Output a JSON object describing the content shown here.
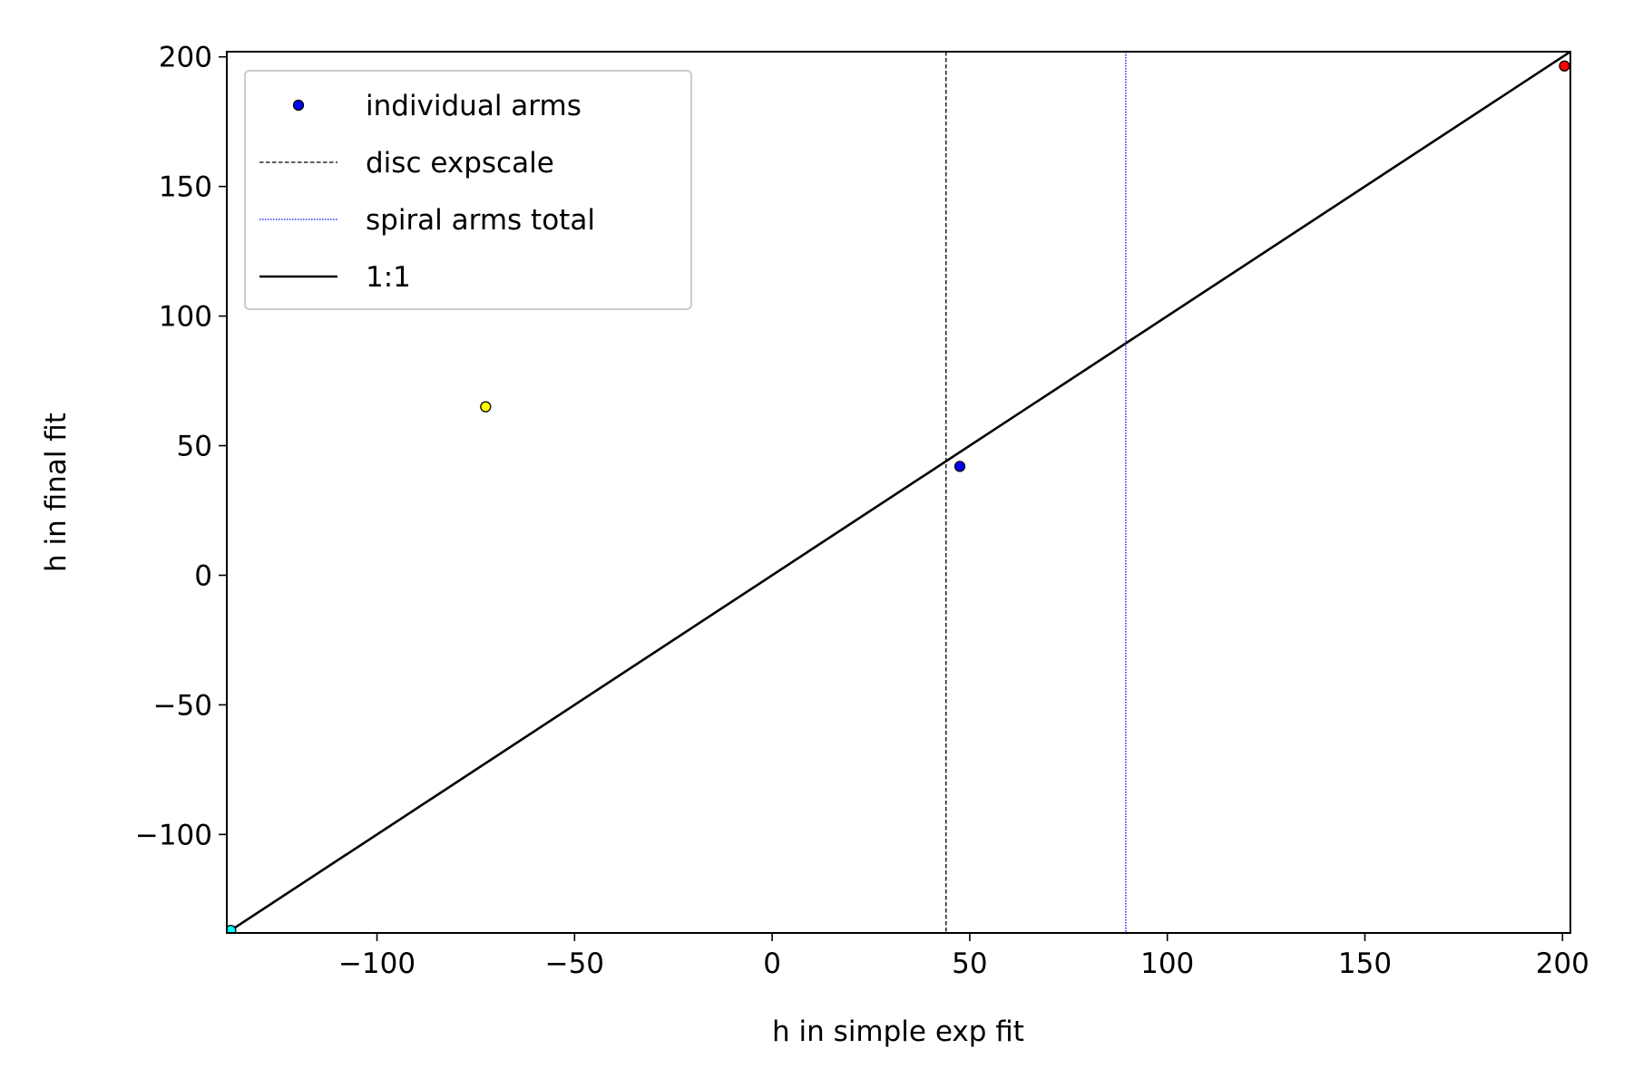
{
  "chart_data": {
    "type": "scatter",
    "xlabel": "h in simple exp fit",
    "ylabel": "h in final fit",
    "xlim": [
      -138,
      202
    ],
    "ylim": [
      -138,
      202
    ],
    "xticks": [
      -100,
      -50,
      0,
      50,
      100,
      150,
      200
    ],
    "yticks": [
      -100,
      -50,
      0,
      50,
      100,
      150,
      200
    ],
    "xtick_labels": [
      "−100",
      "−50",
      "0",
      "50",
      "100",
      "150",
      "200"
    ],
    "ytick_labels": [
      "−100",
      "−50",
      "0",
      "50",
      "100",
      "150",
      "200"
    ],
    "grid": false,
    "legend_position": "top-left",
    "series": [
      {
        "name": "individual arms",
        "kind": "scatter",
        "color": "#0000ff",
        "points": [
          {
            "x": 47.5,
            "y": 42.0,
            "color": "#0000ff"
          },
          {
            "x": -72.5,
            "y": 65.0,
            "color": "#ffff00"
          },
          {
            "x": 200.5,
            "y": 196.5,
            "color": "#ff0000"
          },
          {
            "x": -137.0,
            "y": -137.0,
            "color": "#00ffff"
          }
        ]
      },
      {
        "name": "disc expscale",
        "kind": "vline",
        "x": 44.0,
        "color": "#000000",
        "style": "dashed"
      },
      {
        "name": "spiral arms total",
        "kind": "vline",
        "x": 89.5,
        "color": "#0000ff",
        "style": "dotted"
      },
      {
        "name": "1:1",
        "kind": "line",
        "x": [
          -138,
          202
        ],
        "y": [
          -138,
          202
        ],
        "color": "#000000",
        "style": "solid"
      }
    ]
  }
}
